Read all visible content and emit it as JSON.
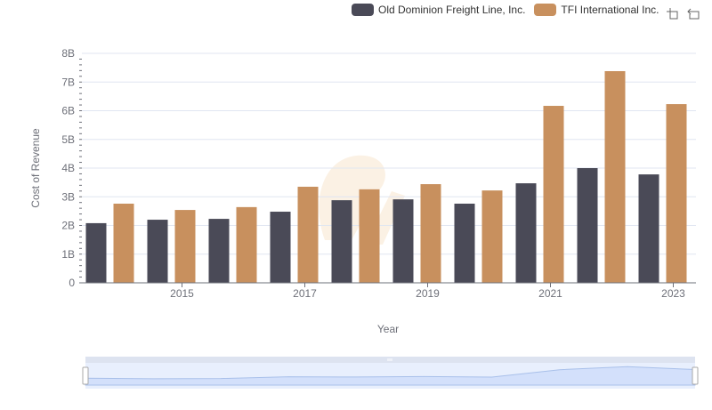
{
  "chart_data": {
    "type": "bar",
    "title": "",
    "xlabel": "Year",
    "ylabel": "Cost of Revenue",
    "ylim": [
      0,
      8000000000
    ],
    "yticks": [
      "0",
      "1B",
      "2B",
      "3B",
      "4B",
      "5B",
      "6B",
      "7B",
      "8B"
    ],
    "xtick_labels": [
      "2015",
      "2017",
      "2019",
      "2021",
      "2023"
    ],
    "categories": [
      "2014",
      "2015",
      "2016",
      "2017",
      "2018",
      "2019",
      "2020",
      "2021",
      "2022",
      "2023"
    ],
    "series": [
      {
        "name": "Old Dominion Freight Line, Inc.",
        "color": "#4a4a57",
        "values": [
          2080000000,
          2200000000,
          2230000000,
          2480000000,
          2880000000,
          2910000000,
          2760000000,
          3470000000,
          4000000000,
          3780000000
        ]
      },
      {
        "name": "TFI International Inc.",
        "color": "#c8905e",
        "values": [
          2760000000,
          2540000000,
          2640000000,
          3350000000,
          3260000000,
          3440000000,
          3220000000,
          6170000000,
          7380000000,
          6230000000
        ]
      }
    ],
    "legend_position": "top-right",
    "grid": true
  },
  "toolbox": {
    "zoom_icon": "zoom-select-icon",
    "reset_icon": "zoom-reset-icon"
  },
  "datazoom": {
    "start_percent": 0,
    "end_percent": 100
  }
}
